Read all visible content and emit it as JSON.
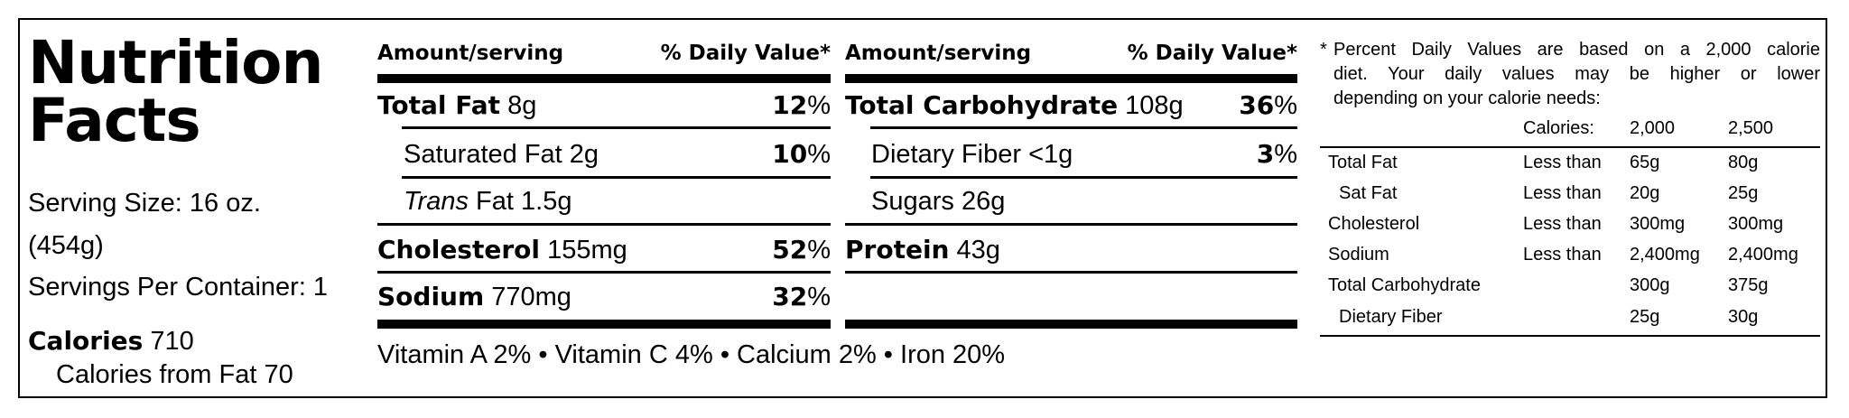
{
  "title": {
    "line1": "Nutrition",
    "line2": "Facts"
  },
  "serving": {
    "size_line1": "Serving Size: 16 oz.",
    "size_line2": "(454g)",
    "per_container": "Servings Per Container: 1"
  },
  "calories": {
    "label": "Calories",
    "value": "710",
    "from_fat": "Calories from Fat 70"
  },
  "left_col": {
    "header_amount": "Amount/serving",
    "header_dv": "% Daily Value*",
    "rows": [
      {
        "name": "Total Fat",
        "amount": "8g",
        "pct": "12",
        "unit": "%"
      },
      {
        "name": "Saturated Fat",
        "amount": "2g",
        "pct": "10",
        "unit": "%"
      },
      {
        "name_italic": "Trans",
        "name": "Fat",
        "amount": "1.5g"
      },
      {
        "name": "Cholesterol",
        "amount": "155mg",
        "pct": "52",
        "unit": "%"
      },
      {
        "name": "Sodium",
        "amount": "770mg",
        "pct": "32",
        "unit": "%"
      }
    ]
  },
  "right_col": {
    "header_amount": "Amount/serving",
    "header_dv": "% Daily Value*",
    "rows": [
      {
        "name": "Total Carbohydrate",
        "amount": "108g",
        "pct": "36",
        "unit": "%"
      },
      {
        "name": "Dietary Fiber",
        "amount": "<1g",
        "pct": "3",
        "unit": "%"
      },
      {
        "name": "Sugars",
        "amount": "26g"
      },
      {
        "name": "Protein",
        "amount": "43g"
      }
    ]
  },
  "vitamins": "Vitamin A 2% • Vitamin C 4% • Calcium 2% • Iron 20%",
  "footnote": {
    "star": "*",
    "line1": "Percent Daily Values are based on a 2,000 calorie",
    "line2": "diet. Your daily values may be higher or lower",
    "line3": "depending on your calorie needs:",
    "header": {
      "calories": "Calories:",
      "c1": "2,000",
      "c2": "2,500"
    },
    "rows": [
      {
        "name": "Total Fat",
        "limit": "Less than",
        "c1": "65g",
        "c2": "80g"
      },
      {
        "name": "Sat Fat",
        "limit": "Less than",
        "c1": "20g",
        "c2": "25g"
      },
      {
        "name": "Cholesterol",
        "limit": "Less than",
        "c1": "300mg",
        "c2": "300mg"
      },
      {
        "name": "Sodium",
        "limit": "Less than",
        "c1": "2,400mg",
        "c2": "2,400mg"
      },
      {
        "name": "Total Carbohydrate",
        "limit": "",
        "c1": "300g",
        "c2": "375g"
      },
      {
        "name": "Dietary Fiber",
        "limit": "",
        "c1": "25g",
        "c2": "30g"
      }
    ]
  }
}
